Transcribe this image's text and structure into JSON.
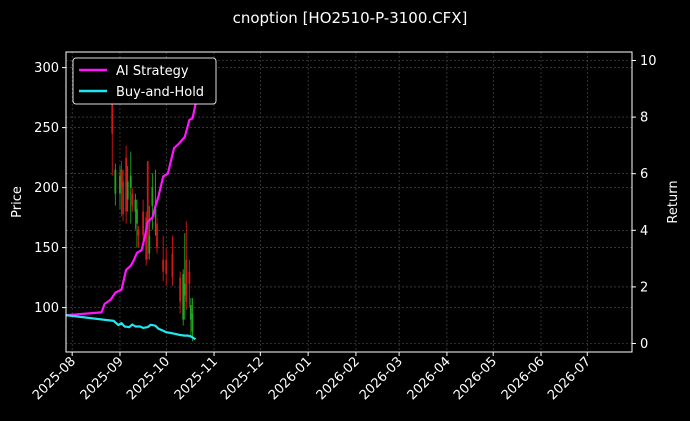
{
  "chart_data": {
    "type": "line",
    "title": "cnoption [HO2510-P-3100.CFX]",
    "ylabel_left": "Price",
    "ylabel_right": "Return",
    "ylim_left": [
      63,
      313
    ],
    "ylim_right": [
      -0.3,
      10.3
    ],
    "yticks_left": [
      "100",
      "150",
      "200",
      "250",
      "300"
    ],
    "yticks_left_values": [
      100,
      150,
      200,
      250,
      300
    ],
    "yticks_right": [
      "0",
      "2",
      "4",
      "6",
      "8",
      "10"
    ],
    "yticks_right_values": [
      0,
      2,
      4,
      6,
      8,
      10
    ],
    "xlim": [
      "2025-07-28",
      "2026-07-30"
    ],
    "xticks": [
      "2025-08",
      "2025-09",
      "2025-10",
      "2025-11",
      "2025-12",
      "2026-01",
      "2026-02",
      "2026-03",
      "2026-04",
      "2026-05",
      "2026-06",
      "2026-07"
    ],
    "xticks_dates": [
      "2025-08-01",
      "2025-09-01",
      "2025-10-01",
      "2025-11-01",
      "2025-12-01",
      "2026-01-01",
      "2026-02-01",
      "2026-03-01",
      "2026-04-01",
      "2026-05-01",
      "2026-06-01",
      "2026-07-01"
    ],
    "grid": true,
    "legend_position": "top-left",
    "colors": {
      "background": "#000000",
      "ai": "#ff14ff",
      "bh": "#22e6ee",
      "up": "#1fa81f",
      "down": "#d01818",
      "grid": "#555555",
      "text": "#ffffff"
    },
    "series": [
      {
        "name": "AI Strategy",
        "axis": "right",
        "x": [
          "2025-07-28",
          "2025-08-20",
          "2025-08-22",
          "2025-08-26",
          "2025-08-29",
          "2025-09-02",
          "2025-09-05",
          "2025-09-08",
          "2025-09-10",
          "2025-09-12",
          "2025-09-15",
          "2025-09-17",
          "2025-09-19",
          "2025-09-22",
          "2025-09-24",
          "2025-09-26",
          "2025-09-29",
          "2025-10-02",
          "2025-10-06",
          "2025-10-09",
          "2025-10-13",
          "2025-10-16",
          "2025-10-18",
          "2025-10-20",
          "2025-10-21"
        ],
        "values": [
          1.0,
          1.1,
          1.4,
          1.55,
          1.8,
          1.9,
          2.6,
          2.75,
          2.95,
          3.2,
          3.3,
          3.75,
          4.3,
          4.45,
          4.85,
          5.2,
          5.9,
          6.0,
          6.9,
          7.05,
          7.3,
          7.9,
          7.95,
          8.45,
          8.95
        ]
      },
      {
        "name": "Buy-and-Hold",
        "axis": "right",
        "x": [
          "2025-07-28",
          "2025-08-28",
          "2025-08-31",
          "2025-09-02",
          "2025-09-04",
          "2025-09-07",
          "2025-09-09",
          "2025-09-11",
          "2025-09-14",
          "2025-09-16",
          "2025-09-19",
          "2025-09-21",
          "2025-09-24",
          "2025-09-26",
          "2025-09-29",
          "2025-10-01",
          "2025-10-04",
          "2025-10-07",
          "2025-10-10",
          "2025-10-13",
          "2025-10-15",
          "2025-10-17",
          "2025-10-20"
        ],
        "values": [
          1.0,
          0.8,
          0.65,
          0.72,
          0.6,
          0.58,
          0.67,
          0.6,
          0.6,
          0.55,
          0.58,
          0.66,
          0.63,
          0.52,
          0.45,
          0.4,
          0.37,
          0.34,
          0.3,
          0.28,
          0.28,
          0.25,
          0.15
        ]
      }
    ],
    "candlesticks": [
      {
        "x": "2025-08-27",
        "open": 270,
        "close": 245,
        "high": 282,
        "low": 210
      },
      {
        "x": "2025-08-29",
        "open": 195,
        "close": 215,
        "high": 220,
        "low": 185
      },
      {
        "x": "2025-09-01",
        "open": 195,
        "close": 210,
        "high": 218,
        "low": 182
      },
      {
        "x": "2025-09-02",
        "open": 215,
        "close": 200,
        "high": 222,
        "low": 176
      },
      {
        "x": "2025-09-03",
        "open": 205,
        "close": 178,
        "high": 215,
        "low": 172
      },
      {
        "x": "2025-09-05",
        "open": 225,
        "close": 180,
        "high": 235,
        "low": 170
      },
      {
        "x": "2025-09-06",
        "open": 190,
        "close": 205,
        "high": 218,
        "low": 180
      },
      {
        "x": "2025-09-08",
        "open": 200,
        "close": 210,
        "high": 230,
        "low": 170
      },
      {
        "x": "2025-09-09",
        "open": 195,
        "close": 185,
        "high": 200,
        "low": 180
      },
      {
        "x": "2025-09-11",
        "open": 180,
        "close": 190,
        "high": 195,
        "low": 165
      },
      {
        "x": "2025-09-12",
        "open": 170,
        "close": 182,
        "high": 190,
        "low": 150
      },
      {
        "x": "2025-09-13",
        "open": 165,
        "close": 160,
        "high": 168,
        "low": 150
      },
      {
        "x": "2025-09-16",
        "open": 180,
        "close": 160,
        "high": 190,
        "low": 150
      },
      {
        "x": "2025-09-18",
        "open": 175,
        "close": 140,
        "high": 180,
        "low": 135
      },
      {
        "x": "2025-09-19",
        "open": 222,
        "close": 160,
        "high": 222,
        "low": 140
      },
      {
        "x": "2025-09-20",
        "open": 145,
        "close": 160,
        "high": 185,
        "low": 140
      },
      {
        "x": "2025-09-22",
        "open": 185,
        "close": 200,
        "high": 212,
        "low": 165
      },
      {
        "x": "2025-09-24",
        "open": 175,
        "close": 185,
        "high": 215,
        "low": 160
      },
      {
        "x": "2025-09-25",
        "open": 170,
        "close": 150,
        "high": 175,
        "low": 145
      },
      {
        "x": "2025-09-29",
        "open": 140,
        "close": 130,
        "high": 160,
        "low": 122
      },
      {
        "x": "2025-10-01",
        "open": 140,
        "close": 128,
        "high": 150,
        "low": 118
      },
      {
        "x": "2025-10-05",
        "open": 145,
        "close": 125,
        "high": 160,
        "low": 118
      },
      {
        "x": "2025-10-10",
        "open": 125,
        "close": 105,
        "high": 130,
        "low": 95
      },
      {
        "x": "2025-10-12",
        "open": 90,
        "close": 128,
        "high": 132,
        "low": 85
      },
      {
        "x": "2025-10-13",
        "open": 110,
        "close": 120,
        "high": 162,
        "low": 90
      },
      {
        "x": "2025-10-14",
        "open": 140,
        "close": 105,
        "high": 172,
        "low": 98
      },
      {
        "x": "2025-10-16",
        "open": 130,
        "close": 120,
        "high": 140,
        "low": 100
      },
      {
        "x": "2025-10-17",
        "open": 90,
        "close": 102,
        "high": 108,
        "low": 75
      },
      {
        "x": "2025-10-18",
        "open": 80,
        "close": 95,
        "high": 108,
        "low": 72
      }
    ]
  }
}
